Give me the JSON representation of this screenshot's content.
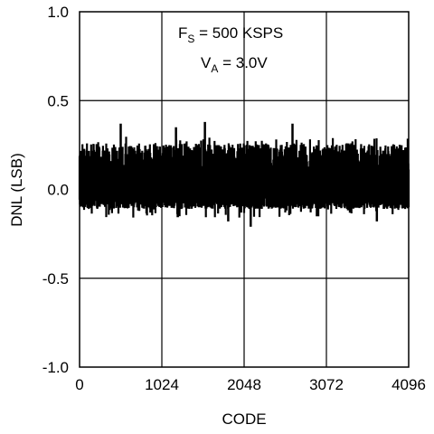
{
  "chart_data": {
    "type": "line",
    "xlabel": "CODE",
    "ylabel": "DNL (LSB)",
    "xlim": [
      0,
      4096
    ],
    "ylim": [
      -1.0,
      1.0
    ],
    "x_ticks": [
      "0",
      "1024",
      "2048",
      "3072",
      "4096"
    ],
    "y_ticks": [
      "-1.0",
      "-0.5",
      "0.0",
      "0.5",
      "1.0"
    ],
    "grid": true,
    "annotation": {
      "line1": {
        "main": "F",
        "sub": "S",
        "rest": " = 500 KSPS"
      },
      "line2": {
        "main": "V",
        "sub": "A",
        "rest": " = 3.0V"
      }
    },
    "series": [
      {
        "color": "#000000",
        "envelope": {
          "upper_typical": 0.2,
          "lower_typical": -0.1,
          "upper_max": 0.38,
          "lower_min": -0.21
        },
        "peaks": [
          {
            "x": 512,
            "y": 0.37
          },
          {
            "x": 1200,
            "y": 0.35
          },
          {
            "x": 1560,
            "y": 0.38
          },
          {
            "x": 1850,
            "y": -0.18
          },
          {
            "x": 2130,
            "y": -0.21
          },
          {
            "x": 2650,
            "y": 0.37
          },
          {
            "x": 3700,
            "y": -0.18
          }
        ]
      }
    ]
  }
}
